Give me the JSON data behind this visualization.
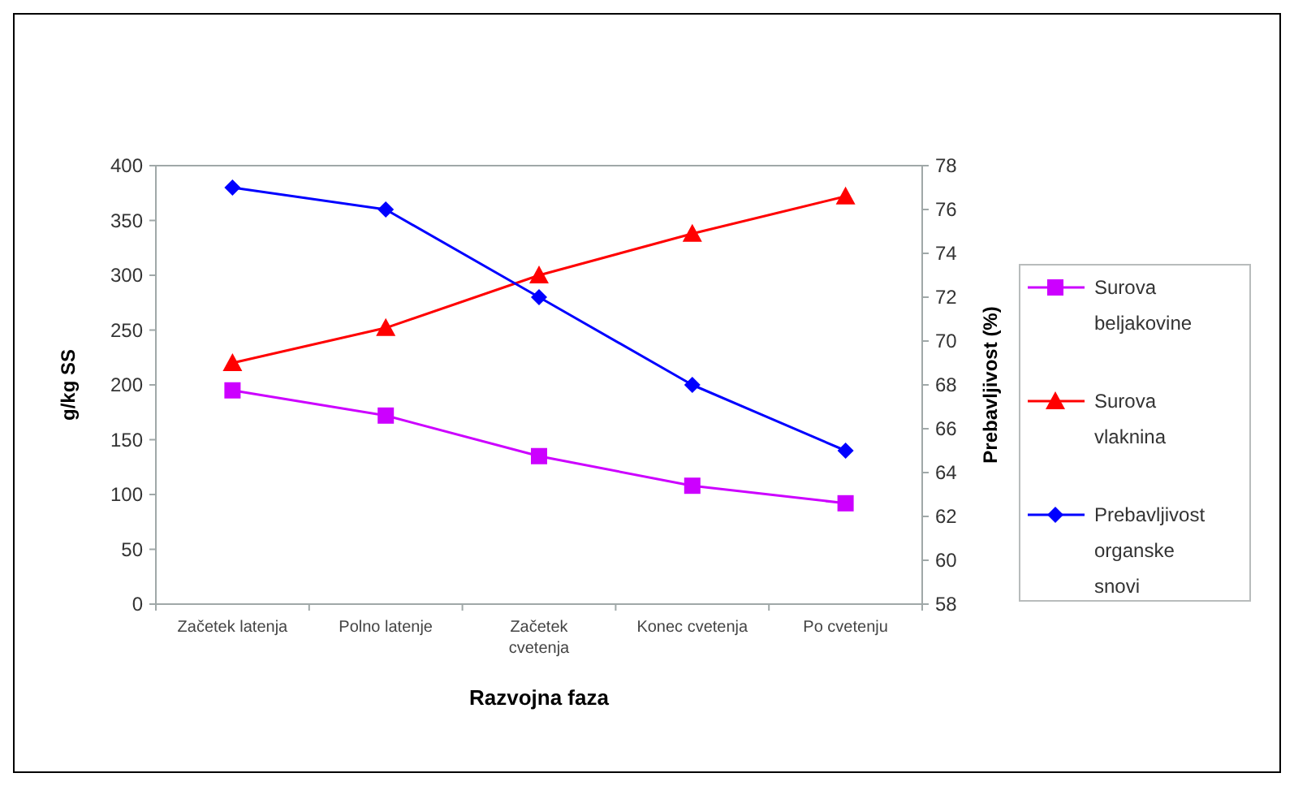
{
  "chart_data": {
    "type": "line",
    "xlabel": "Razvojna faza",
    "ylabel": "g/kg SS",
    "y2label": "Prebavljivost (%)",
    "categories": [
      "Začetek latenja",
      "Polno latenje",
      "Začetek cvetenja",
      "Konec cvetenja",
      "Po cvetenju"
    ],
    "ylim": [
      0,
      400
    ],
    "yticks": [
      0,
      50,
      100,
      150,
      200,
      250,
      300,
      350,
      400
    ],
    "y2lim": [
      58,
      78
    ],
    "y2ticks": [
      58,
      60,
      62,
      64,
      66,
      68,
      70,
      72,
      74,
      76,
      78
    ],
    "legend": "right",
    "grid": false,
    "series": [
      {
        "name": "Surova beljakovine",
        "color": "#cc00ff",
        "marker": "square",
        "values": [
          195,
          172,
          135,
          108,
          92
        ]
      },
      {
        "name": "Surova vlaknina",
        "color": "#ff0000",
        "marker": "triangle",
        "values": [
          220,
          252,
          300,
          338,
          372
        ]
      },
      {
        "name": "Prebavljivost organske snovi",
        "color": "#0000ff",
        "marker": "diamond",
        "axis": "y2",
        "values": [
          77,
          76,
          72,
          68,
          65
        ]
      }
    ]
  }
}
